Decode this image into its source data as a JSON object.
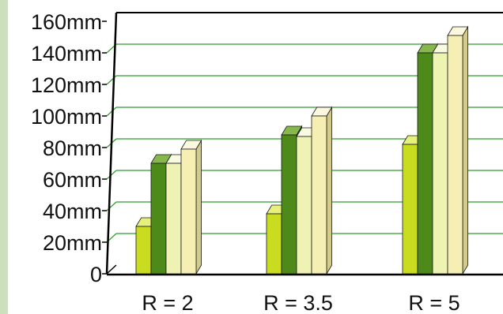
{
  "chart_data": {
    "type": "bar",
    "title": "",
    "xlabel": "",
    "ylabel": "",
    "categories": [
      "R = 2",
      "R = 3.5",
      "R = 5"
    ],
    "series": [
      {
        "values": [
          30,
          38,
          82
        ]
      },
      {
        "values": [
          70,
          88,
          140
        ]
      },
      {
        "values": [
          70,
          87,
          140
        ]
      },
      {
        "values": [
          79,
          100,
          151
        ]
      }
    ],
    "y_ticks": [
      0,
      20,
      40,
      60,
      80,
      100,
      120,
      140,
      160
    ],
    "y_tick_labels": [
      "0",
      "20mm",
      "40mm",
      "60mm",
      "80mm",
      "100mm",
      "120mm",
      "140mm",
      "160mm"
    ],
    "ylim": [
      0,
      160
    ],
    "grid": true,
    "bar_style": "3d",
    "colors": {
      "page_background": "#ffffff",
      "left_border": "#cde0bd",
      "gridline": "#2e9e2e",
      "axis": "#000000",
      "series_front": [
        "#c9dc1f",
        "#4e8a1a",
        "#eef2b2",
        "#f5efb4"
      ],
      "series_top": [
        "#e6f07a",
        "#87b84c",
        "#f9fbe0",
        "#fcf8dd"
      ],
      "series_side": [
        "#8fa012",
        "#2f5e0c",
        "#c2c98a",
        "#d3cb8c"
      ]
    }
  }
}
